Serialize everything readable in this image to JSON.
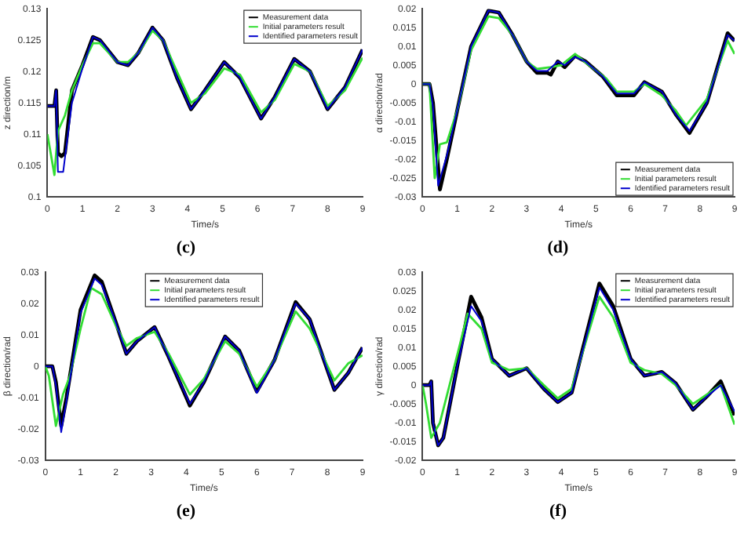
{
  "chart_data": [
    {
      "type": "line",
      "xlabel": "Time/s",
      "ylabel": "z direction/m",
      "annotations": [
        "(c)"
      ],
      "xlim": [
        0,
        9
      ],
      "xticks": [
        0,
        1,
        2,
        3,
        4,
        5,
        6,
        7,
        8,
        9
      ],
      "ylim": [
        0.1,
        0.13
      ],
      "yticks": [
        0.1,
        0.105,
        0.11,
        0.115,
        0.12,
        0.125,
        0.13
      ],
      "legend": "top right",
      "grid": false,
      "series": [
        {
          "name": "Measurement data",
          "color": "#000000",
          "x": [
            0,
            0.2,
            0.25,
            0.3,
            0.4,
            0.5,
            0.7,
            1,
            1.3,
            1.5,
            2,
            2.3,
            2.6,
            3,
            3.3,
            3.7,
            4.1,
            4.5,
            5.05,
            5.5,
            6.1,
            6.5,
            7.05,
            7.5,
            8,
            8.5,
            9
          ],
          "values": [
            0.1145,
            0.1145,
            0.117,
            0.107,
            0.1065,
            0.107,
            0.117,
            0.121,
            0.1255,
            0.125,
            0.1215,
            0.121,
            0.123,
            0.127,
            0.125,
            0.119,
            0.114,
            0.117,
            0.1215,
            0.119,
            0.1125,
            0.116,
            0.122,
            0.12,
            0.114,
            0.1175,
            0.1235
          ]
        },
        {
          "name": "Initial parameters result",
          "color": "#33dd33",
          "x": [
            0,
            0.2,
            0.3,
            0.5,
            0.7,
            1,
            1.3,
            1.5,
            2,
            2.3,
            2.6,
            3,
            3.3,
            3.7,
            4.1,
            4.5,
            5.05,
            5.5,
            6.1,
            6.5,
            7.05,
            7.5,
            8,
            8.5,
            9
          ],
          "values": [
            0.11,
            0.1035,
            0.1105,
            0.113,
            0.117,
            0.121,
            0.1245,
            0.1245,
            0.1215,
            0.1215,
            0.123,
            0.1265,
            0.125,
            0.12,
            0.115,
            0.1165,
            0.1205,
            0.1195,
            0.1135,
            0.1155,
            0.1212,
            0.12,
            0.1145,
            0.117,
            0.1222
          ]
        },
        {
          "name": "Identified parameters result",
          "color": "#0000cc",
          "x": [
            0,
            0.2,
            0.25,
            0.3,
            0.45,
            0.7,
            1,
            1.3,
            1.5,
            2,
            2.3,
            2.6,
            3,
            3.3,
            3.7,
            4.1,
            4.5,
            5.05,
            5.5,
            6.1,
            6.5,
            7.05,
            7.5,
            8,
            8.5,
            9
          ],
          "values": [
            0.1145,
            0.1145,
            0.117,
            0.104,
            0.104,
            0.115,
            0.1205,
            0.1255,
            0.125,
            0.1215,
            0.121,
            0.123,
            0.127,
            0.125,
            0.119,
            0.114,
            0.117,
            0.1215,
            0.119,
            0.1125,
            0.116,
            0.122,
            0.12,
            0.114,
            0.1175,
            0.1235
          ]
        }
      ]
    },
    {
      "type": "line",
      "xlabel": "Time/s",
      "ylabel": "α direction/rad",
      "annotations": [
        "(d)"
      ],
      "xlim": [
        0,
        9
      ],
      "xticks": [
        0,
        1,
        2,
        3,
        4,
        5,
        6,
        7,
        8,
        9
      ],
      "ylim": [
        -0.03,
        0.02
      ],
      "yticks": [
        -0.03,
        -0.025,
        -0.02,
        -0.015,
        -0.01,
        -0.005,
        0,
        0.005,
        0.01,
        0.015,
        0.02
      ],
      "legend": "bottom right",
      "grid": false,
      "series": [
        {
          "name": "Measurement data",
          "color": "#000000",
          "x": [
            0,
            0.2,
            0.3,
            0.5,
            0.7,
            1,
            1.4,
            1.9,
            2.2,
            2.6,
            3,
            3.3,
            3.6,
            3.7,
            3.9,
            4.1,
            4.4,
            4.7,
            5.2,
            5.6,
            6.1,
            6.4,
            6.9,
            7.3,
            7.7,
            8.2,
            8.8,
            9
          ],
          "values": [
            0,
            0,
            -0.005,
            -0.028,
            -0.02,
            -0.007,
            0.01,
            0.0195,
            0.019,
            0.013,
            0.006,
            0.003,
            0.003,
            0.0025,
            0.006,
            0.0045,
            0.0075,
            0.006,
            0.002,
            -0.003,
            -0.003,
            0.0005,
            -0.002,
            -0.008,
            -0.013,
            -0.005,
            0.0135,
            0.0115
          ]
        },
        {
          "name": "Initial parameters result",
          "color": "#33dd33",
          "x": [
            0,
            0.2,
            0.35,
            0.5,
            0.7,
            1,
            1.4,
            1.9,
            2.2,
            2.6,
            3,
            3.3,
            3.7,
            4,
            4.4,
            4.8,
            5.3,
            5.6,
            6.1,
            6.4,
            6.9,
            7.3,
            7.6,
            8.2,
            8.8,
            9
          ],
          "values": [
            0,
            0,
            -0.025,
            -0.016,
            -0.0155,
            -0.007,
            0.009,
            0.018,
            0.0175,
            0.013,
            0.006,
            0.004,
            0.0045,
            0.005,
            0.008,
            0.005,
            0.0015,
            -0.002,
            -0.002,
            0,
            -0.003,
            -0.007,
            -0.011,
            -0.004,
            0.0115,
            0.008
          ]
        },
        {
          "name": "Identified parameters result",
          "color": "#0000cc",
          "x": [
            0,
            0.2,
            0.3,
            0.45,
            0.7,
            1,
            1.4,
            1.9,
            2.2,
            2.6,
            3,
            3.3,
            3.6,
            3.9,
            4.1,
            4.4,
            4.7,
            5.2,
            5.6,
            6.1,
            6.4,
            6.9,
            7.3,
            7.7,
            8.2,
            8.8,
            9
          ],
          "values": [
            0,
            0,
            -0.006,
            -0.027,
            -0.019,
            -0.007,
            0.01,
            0.0195,
            0.019,
            0.013,
            0.006,
            0.0035,
            0.0035,
            0.006,
            0.005,
            0.0072,
            0.006,
            0.002,
            -0.0025,
            -0.0025,
            0.0005,
            -0.002,
            -0.008,
            -0.0125,
            -0.005,
            0.013,
            0.0115
          ]
        }
      ]
    },
    {
      "type": "line",
      "xlabel": "Time/s",
      "ylabel": "β direction/rad",
      "annotations": [
        "(e)"
      ],
      "xlim": [
        0,
        9
      ],
      "xticks": [
        0,
        1,
        2,
        3,
        4,
        5,
        6,
        7,
        8,
        9
      ],
      "ylim": [
        -0.03,
        0.03
      ],
      "yticks": [
        -0.03,
        -0.02,
        -0.01,
        0,
        0.01,
        0.02,
        0.03
      ],
      "legend": "top",
      "grid": false,
      "series": [
        {
          "name": "Measurement data",
          "color": "#000000",
          "x": [
            0,
            0.2,
            0.3,
            0.45,
            0.6,
            1,
            1.4,
            1.6,
            2,
            2.3,
            2.6,
            3.1,
            3.5,
            4.1,
            4.5,
            5.1,
            5.5,
            6,
            6.5,
            7.1,
            7.5,
            8.2,
            8.6,
            9
          ],
          "values": [
            0,
            0,
            -0.005,
            -0.019,
            -0.01,
            0.018,
            0.029,
            0.027,
            0.014,
            0.004,
            0.008,
            0.0125,
            0.003,
            -0.0125,
            -0.005,
            0.0095,
            0.005,
            -0.008,
            0.002,
            0.0205,
            0.015,
            -0.0075,
            -0.002,
            0.006
          ]
        },
        {
          "name": "Initial parameters result",
          "color": "#33dd33",
          "x": [
            0,
            0.1,
            0.3,
            0.5,
            0.7,
            1,
            1.3,
            1.6,
            2,
            2.3,
            2.6,
            3.1,
            3.5,
            4.1,
            4.5,
            5.1,
            5.5,
            6,
            6.5,
            7.1,
            7.5,
            8.2,
            8.6,
            9
          ],
          "values": [
            0,
            -0.003,
            -0.019,
            -0.009,
            -0.003,
            0.012,
            0.025,
            0.023,
            0.013,
            0.0065,
            0.009,
            0.011,
            0.004,
            -0.009,
            -0.004,
            0.008,
            0.004,
            -0.0065,
            0.002,
            0.0175,
            0.012,
            -0.0045,
            0.001,
            0.0035
          ]
        },
        {
          "name": "Identified parameters result",
          "color": "#0000cc",
          "x": [
            0,
            0.2,
            0.3,
            0.45,
            0.6,
            1,
            1.4,
            1.6,
            2,
            2.3,
            2.6,
            3.1,
            3.5,
            4.1,
            4.5,
            5.1,
            5.5,
            6,
            6.5,
            7.1,
            7.5,
            8.2,
            8.6,
            9
          ],
          "values": [
            0,
            0,
            -0.006,
            -0.021,
            -0.011,
            0.017,
            0.028,
            0.026,
            0.014,
            0.004,
            0.008,
            0.0125,
            0.003,
            -0.012,
            -0.005,
            0.0095,
            0.005,
            -0.0085,
            0.002,
            0.02,
            0.015,
            -0.0075,
            -0.002,
            0.006
          ]
        }
      ]
    },
    {
      "type": "line",
      "xlabel": "Time/s",
      "ylabel": "γ direction/rad",
      "annotations": [
        "(f)"
      ],
      "xlim": [
        0,
        9
      ],
      "xticks": [
        0,
        1,
        2,
        3,
        4,
        5,
        6,
        7,
        8,
        9
      ],
      "ylim": [
        -0.02,
        0.03
      ],
      "yticks": [
        -0.02,
        -0.015,
        -0.01,
        -0.005,
        0,
        0.005,
        0.01,
        0.015,
        0.02,
        0.025,
        0.03
      ],
      "legend": "top right",
      "grid": false,
      "series": [
        {
          "name": "Measurement data",
          "color": "#000000",
          "x": [
            0,
            0.2,
            0.25,
            0.3,
            0.45,
            0.6,
            1,
            1.4,
            1.7,
            2,
            2.5,
            3,
            3.5,
            3.9,
            4.3,
            5.1,
            5.5,
            6,
            6.4,
            6.9,
            7.3,
            7.8,
            8.2,
            8.6,
            9
          ],
          "values": [
            0,
            0,
            0.001,
            -0.01,
            -0.016,
            -0.014,
            0.005,
            0.0235,
            0.018,
            0.007,
            0.0025,
            0.0045,
            -0.001,
            -0.0045,
            -0.002,
            0.027,
            0.021,
            0.007,
            0.0025,
            0.0035,
            0.0005,
            -0.0065,
            -0.003,
            0.001,
            -0.008
          ]
        },
        {
          "name": "Initial parameters result",
          "color": "#33dd33",
          "x": [
            0,
            0.1,
            0.25,
            0.5,
            1,
            1.3,
            1.7,
            2,
            2.5,
            3,
            3.5,
            3.9,
            4.3,
            5.1,
            5.5,
            6,
            6.4,
            6.9,
            7.3,
            7.8,
            8.2,
            8.6,
            9
          ],
          "values": [
            0,
            -0.005,
            -0.014,
            -0.01,
            0.008,
            0.019,
            0.015,
            0.006,
            0.004,
            0.0045,
            0,
            -0.0035,
            -0.001,
            0.0235,
            0.018,
            0.006,
            0.004,
            0.003,
            0,
            -0.005,
            -0.0025,
            0,
            -0.0105
          ]
        },
        {
          "name": "Identified parameters result",
          "color": "#0000cc",
          "x": [
            0,
            0.2,
            0.25,
            0.3,
            0.45,
            0.6,
            1,
            1.4,
            1.7,
            2,
            2.5,
            3,
            3.5,
            3.9,
            4.3,
            5.1,
            5.5,
            6,
            6.4,
            6.9,
            7.3,
            7.8,
            8.2,
            8.6,
            9
          ],
          "values": [
            0,
            0,
            0.001,
            -0.01,
            -0.016,
            -0.014,
            0.005,
            0.021,
            0.017,
            0.007,
            0.0025,
            0.0045,
            -0.001,
            -0.0045,
            -0.002,
            0.026,
            0.02,
            0.007,
            0.0025,
            0.0035,
            0.0005,
            -0.0065,
            -0.003,
            0,
            -0.007
          ]
        }
      ]
    }
  ]
}
